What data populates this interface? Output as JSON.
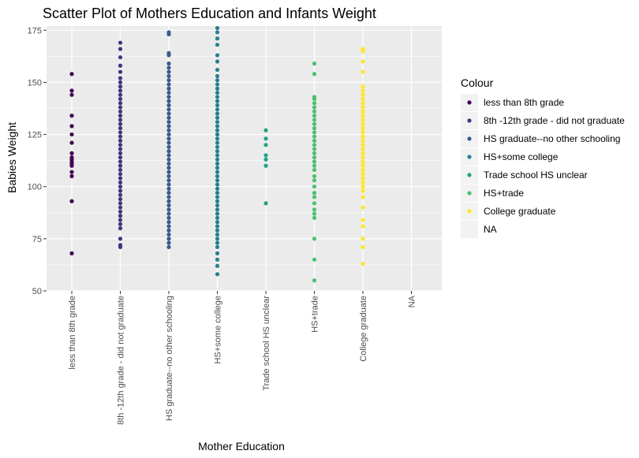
{
  "chart_data": {
    "type": "scatter",
    "title": "Scatter Plot of Mothers Education and Infants Weight",
    "xlabel": "Mother Education",
    "ylabel": "Babies Weight",
    "ylim": [
      50,
      177
    ],
    "yticks": [
      50,
      75,
      100,
      125,
      150,
      175
    ],
    "grid": true,
    "background": "#ebebeb",
    "legend": {
      "title": "Colour",
      "position": "right"
    },
    "categories": [
      "less than 8th grade",
      "8th -12th grade - did not graduate",
      "HS graduate--no other schooling",
      "HS+some college",
      "Trade school HS unclear",
      "HS+trade",
      "College graduate",
      "NA"
    ],
    "series": [
      {
        "name": "less than 8th grade",
        "color": "#440154",
        "values": [
          68,
          93,
          105,
          107,
          110,
          111,
          112,
          113,
          114,
          116,
          121,
          125,
          129,
          134,
          144,
          146,
          154
        ]
      },
      {
        "name": "8th -12th grade - did not graduate",
        "color": "#46337e",
        "values": [
          71,
          72,
          75,
          80,
          82,
          84,
          86,
          88,
          90,
          92,
          94,
          96,
          98,
          100,
          102,
          104,
          106,
          108,
          110,
          112,
          114,
          116,
          118,
          120,
          122,
          124,
          126,
          128,
          130,
          132,
          134,
          136,
          138,
          140,
          142,
          144,
          146,
          148,
          150,
          152,
          155,
          158,
          162,
          166,
          169
        ]
      },
      {
        "name": "HS graduate--no other schooling",
        "color": "#365c8d",
        "values": [
          71,
          73,
          75,
          77,
          79,
          81,
          83,
          85,
          87,
          89,
          91,
          93,
          95,
          97,
          99,
          101,
          103,
          105,
          107,
          109,
          111,
          113,
          115,
          117,
          119,
          121,
          123,
          125,
          127,
          129,
          131,
          133,
          135,
          137,
          139,
          141,
          143,
          145,
          147,
          149,
          151,
          153,
          155,
          157,
          159,
          163,
          164,
          173,
          174
        ]
      },
      {
        "name": "HS+some college",
        "color": "#277f8e",
        "values": [
          58,
          62,
          65,
          68,
          71,
          73,
          75,
          77,
          79,
          81,
          83,
          85,
          87,
          89,
          91,
          93,
          95,
          97,
          99,
          101,
          103,
          105,
          107,
          109,
          111,
          113,
          115,
          117,
          119,
          121,
          123,
          125,
          127,
          129,
          131,
          133,
          135,
          137,
          139,
          141,
          143,
          145,
          147,
          149,
          151,
          153,
          156,
          160,
          163,
          168,
          171,
          174,
          176
        ]
      },
      {
        "name": "Trade school HS unclear",
        "color": "#1fa187",
        "values": [
          92,
          110,
          113,
          115,
          120,
          123,
          127
        ]
      },
      {
        "name": "HS+trade",
        "color": "#4ac16d",
        "values": [
          55,
          65,
          75,
          85,
          87,
          89,
          92,
          95,
          97,
          100,
          103,
          105,
          108,
          110,
          112,
          114,
          116,
          118,
          120,
          122,
          124,
          126,
          128,
          130,
          132,
          134,
          136,
          138,
          140,
          142,
          143,
          154,
          159
        ]
      },
      {
        "name": "College graduate",
        "color": "#fde725",
        "values": [
          63,
          71,
          75,
          81,
          84,
          90,
          95,
          98,
          100,
          102,
          104,
          106,
          108,
          110,
          112,
          114,
          116,
          118,
          120,
          122,
          124,
          126,
          128,
          130,
          132,
          134,
          136,
          138,
          140,
          142,
          144,
          146,
          148,
          155,
          160,
          165,
          166
        ]
      },
      {
        "name": "NA",
        "color": "#ebebeb",
        "values": []
      }
    ]
  }
}
